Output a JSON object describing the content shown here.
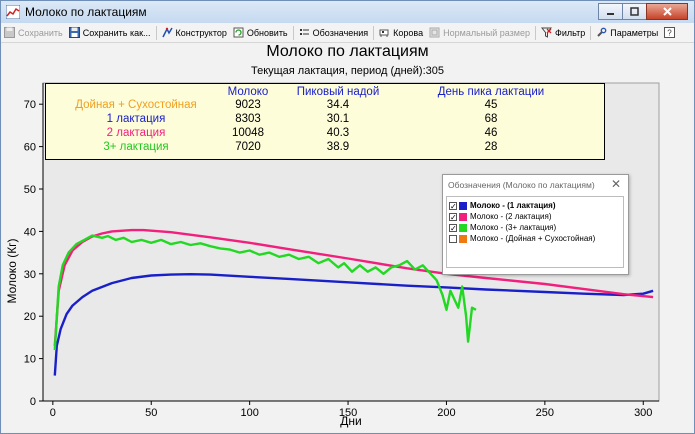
{
  "window": {
    "title": "Молоко по лактациям"
  },
  "toolbar": {
    "save": "Сохранить",
    "save_as": "Сохранить как...",
    "constructor": "Конструктор",
    "refresh": "Обновить",
    "notation": "Обозначения",
    "cows": "Корова",
    "normal_size": "Нормальный размер",
    "filter": "Фильтр",
    "params": "Параметры"
  },
  "chart": {
    "title": "Молоко по лактациям",
    "subtitle": "Текущая лактация, период (дней):305"
  },
  "stats": {
    "headers": [
      "Молоко",
      "Пиковый надой",
      "День пика лактации"
    ],
    "rows": [
      {
        "name": "Дойная + Сухостойная",
        "milk": "9023",
        "peak": "34.4",
        "day": "45",
        "color": "#f0a020"
      },
      {
        "name": "1 лактация",
        "milk": "8303",
        "peak": "30.1",
        "day": "68",
        "color": "#1a20c8"
      },
      {
        "name": "2 лактация",
        "milk": "10048",
        "peak": "40.3",
        "day": "46",
        "color": "#f0207c"
      },
      {
        "name": "3+ лактация",
        "milk": "7020",
        "peak": "38.9",
        "day": "28",
        "color": "#22c822"
      }
    ]
  },
  "legend": {
    "title": "Обозначения (Молоко по лактациям)",
    "close": "✕",
    "items": [
      {
        "label": "Молоко - (1 лактация)",
        "checked": true,
        "color": "#1a20c8",
        "bold": true
      },
      {
        "label": "Молоко - (2 лактация)",
        "checked": true,
        "color": "#f0207c",
        "bold": false
      },
      {
        "label": "Молоко - (3+ лактация)",
        "checked": true,
        "color": "#22d822",
        "bold": false
      },
      {
        "label": "Молоко - (Дойная + Сухостойная)",
        "checked": false,
        "color": "#f07a10",
        "bold": false
      }
    ]
  },
  "chart_data": {
    "type": "line",
    "title": "Молоко по лактациям",
    "subtitle": "Текущая лактация, период (дней):305",
    "xlabel": "Дни",
    "ylabel": "Молоко (Кг)",
    "xlim": [
      -5,
      308
    ],
    "ylim": [
      0,
      75
    ],
    "xticks": [
      0,
      50,
      100,
      150,
      200,
      250,
      300
    ],
    "yticks": [
      0,
      10,
      20,
      30,
      40,
      50,
      60,
      70
    ],
    "grid": false,
    "series": [
      {
        "name": "Молоко - (1 лактация)",
        "color": "#1a20c8",
        "x": [
          1,
          2,
          4,
          7,
          10,
          15,
          20,
          30,
          40,
          50,
          60,
          70,
          80,
          100,
          120,
          150,
          180,
          200,
          220,
          250,
          270,
          290,
          300,
          305
        ],
        "y": [
          6,
          13,
          17,
          20.5,
          22.5,
          24.5,
          26,
          27.8,
          29,
          29.6,
          29.8,
          29.9,
          29.8,
          29.3,
          28.8,
          28,
          27.2,
          26.8,
          26.3,
          25.7,
          25.3,
          25,
          25.3,
          26
        ]
      },
      {
        "name": "Молоко - (2 лактация)",
        "color": "#f0207c",
        "x": [
          1,
          3,
          6,
          10,
          15,
          20,
          25,
          30,
          40,
          46,
          60,
          80,
          100,
          120,
          150,
          180,
          200,
          220,
          250,
          270,
          290,
          305
        ],
        "y": [
          13,
          26,
          32,
          35.5,
          37.5,
          38.8,
          39.5,
          40,
          40.3,
          40.3,
          39.8,
          38.6,
          37.3,
          35.8,
          33.6,
          31.3,
          30,
          29,
          27.6,
          26.4,
          25.2,
          24.5
        ]
      },
      {
        "name": "Молоко - (3+ лактация)",
        "color": "#22d822",
        "x": [
          1,
          3,
          5,
          8,
          12,
          16,
          20,
          25,
          28,
          32,
          36,
          40,
          45,
          50,
          55,
          60,
          65,
          70,
          75,
          80,
          85,
          90,
          95,
          100,
          105,
          110,
          115,
          120,
          125,
          130,
          135,
          140,
          145,
          148,
          152,
          156,
          160,
          164,
          168,
          172,
          176,
          180,
          184,
          188,
          192,
          195,
          198,
          200,
          202,
          204,
          206,
          208,
          210,
          211,
          213,
          215
        ],
        "y": [
          12,
          27,
          32,
          35,
          37,
          38,
          39,
          38.5,
          38.9,
          38,
          38.5,
          37.5,
          38,
          37.3,
          38,
          37,
          37.5,
          36.8,
          37.2,
          36.5,
          36,
          35.7,
          35,
          35.5,
          34.5,
          35,
          34,
          34.5,
          33.5,
          34,
          32.5,
          33.5,
          31.5,
          32.5,
          30.5,
          32,
          30.5,
          31.5,
          30,
          31.5,
          32,
          33,
          31,
          32,
          30,
          28.5,
          25,
          21.5,
          26,
          24,
          22,
          27,
          20,
          14,
          22,
          21.5
        ]
      }
    ]
  }
}
